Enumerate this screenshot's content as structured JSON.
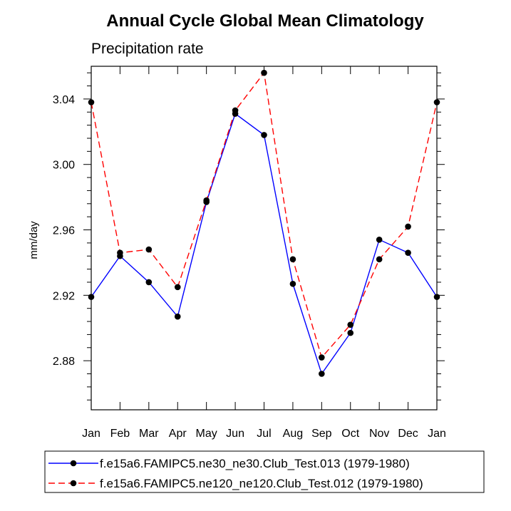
{
  "chart_data": {
    "type": "line",
    "title": "Annual Cycle Global Mean Climatology",
    "subtitle": "Precipitation rate",
    "xlabel": "",
    "ylabel": "mm/day",
    "categories": [
      "Jan",
      "Feb",
      "Mar",
      "Apr",
      "May",
      "Jun",
      "Jul",
      "Aug",
      "Sep",
      "Oct",
      "Nov",
      "Dec",
      "Jan"
    ],
    "ylim": [
      2.85,
      3.06
    ],
    "yticks": [
      2.88,
      2.92,
      2.96,
      3.0,
      3.04
    ],
    "ytick_labels": [
      "2.88",
      "2.92",
      "2.96",
      "3.00",
      "3.04"
    ],
    "series": [
      {
        "name": "f.e15a6.FAMIPC5.ne30_ne30.Club_Test.013 (1979-1980)",
        "color": "#0000ff",
        "dash": "solid",
        "values": [
          2.919,
          2.944,
          2.928,
          2.907,
          2.977,
          3.031,
          3.018,
          2.927,
          2.872,
          2.897,
          2.954,
          2.946,
          2.919
        ]
      },
      {
        "name": "f.e15a6.FAMIPC5.ne120_ne120.Club_Test.012 (1979-1980)",
        "color": "#ff0000",
        "dash": "dashed",
        "values": [
          3.038,
          2.946,
          2.948,
          2.925,
          2.978,
          3.033,
          3.056,
          2.942,
          2.882,
          2.902,
          2.942,
          2.962,
          3.038
        ]
      }
    ],
    "legend_position": "bottom"
  }
}
